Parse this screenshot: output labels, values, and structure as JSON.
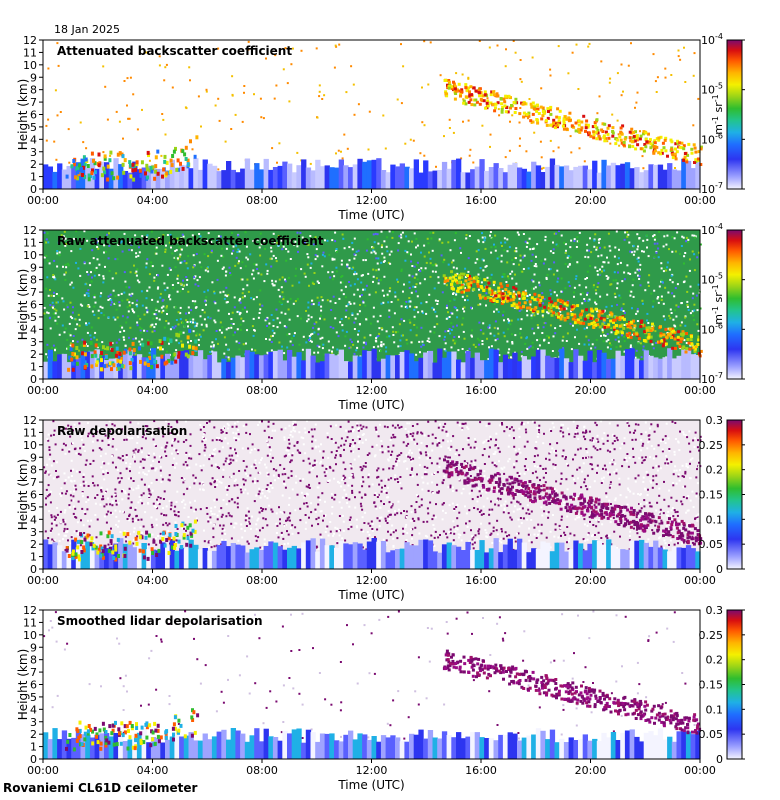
{
  "date": "18 Jan 2025",
  "footer": "Rovaniemi CL61D ceilometer",
  "chart_data": [
    {
      "type": "heatmap",
      "title": "Attenuated backscatter coefficient",
      "xlabel": "Time (UTC)",
      "ylabel": "Height (km)",
      "xticks": [
        "00:00",
        "04:00",
        "08:00",
        "12:00",
        "16:00",
        "20:00",
        "00:00"
      ],
      "yticks": [
        0,
        1,
        2,
        3,
        4,
        5,
        6,
        7,
        8,
        9,
        10,
        11,
        12
      ],
      "xlim_hours": [
        0,
        24
      ],
      "ylim_km": [
        0,
        12
      ],
      "colorbar": {
        "scale": "log",
        "range": [
          1e-07,
          0.0001
        ],
        "ticks": [
          "10-7",
          "10-6",
          "10-5",
          "10-4"
        ],
        "unit": "m-1 sr-1"
      }
    },
    {
      "type": "heatmap",
      "title": "Raw attenuated backscatter coefficient",
      "xlabel": "Time (UTC)",
      "ylabel": "Height (km)",
      "xticks": [
        "00:00",
        "04:00",
        "08:00",
        "12:00",
        "16:00",
        "20:00",
        "00:00"
      ],
      "yticks": [
        0,
        1,
        2,
        3,
        4,
        5,
        6,
        7,
        8,
        9,
        10,
        11,
        12
      ],
      "xlim_hours": [
        0,
        24
      ],
      "ylim_km": [
        0,
        12
      ],
      "colorbar": {
        "scale": "log",
        "range": [
          1e-07,
          0.0001
        ],
        "ticks": [
          "10-7",
          "10-6",
          "10-5",
          "10-4"
        ],
        "unit": "m-1 sr-1"
      }
    },
    {
      "type": "heatmap",
      "title": "Raw depolarisation",
      "xlabel": "Time (UTC)",
      "ylabel": "Height (km)",
      "xticks": [
        "00:00",
        "04:00",
        "08:00",
        "12:00",
        "16:00",
        "20:00",
        "00:00"
      ],
      "yticks": [
        0,
        1,
        2,
        3,
        4,
        5,
        6,
        7,
        8,
        9,
        10,
        11,
        12
      ],
      "xlim_hours": [
        0,
        24
      ],
      "ylim_km": [
        0,
        12
      ],
      "colorbar": {
        "scale": "linear",
        "range": [
          0,
          0.3
        ],
        "ticks": [
          "0",
          "0.05",
          "0.1",
          "0.15",
          "0.2",
          "0.25",
          "0.3"
        ]
      }
    },
    {
      "type": "heatmap",
      "title": "Smoothed lidar depolarisation",
      "xlabel": "Time (UTC)",
      "ylabel": "Height (km)",
      "xticks": [
        "00:00",
        "04:00",
        "08:00",
        "12:00",
        "16:00",
        "20:00",
        "00:00"
      ],
      "yticks": [
        0,
        1,
        2,
        3,
        4,
        5,
        6,
        7,
        8,
        9,
        10,
        11,
        12
      ],
      "xlim_hours": [
        0,
        24
      ],
      "ylim_km": [
        0,
        12
      ],
      "colorbar": {
        "scale": "linear",
        "range": [
          0,
          0.3
        ],
        "ticks": [
          "0",
          "0.05",
          "0.1",
          "0.15",
          "0.2",
          "0.25",
          "0.3"
        ]
      }
    }
  ]
}
